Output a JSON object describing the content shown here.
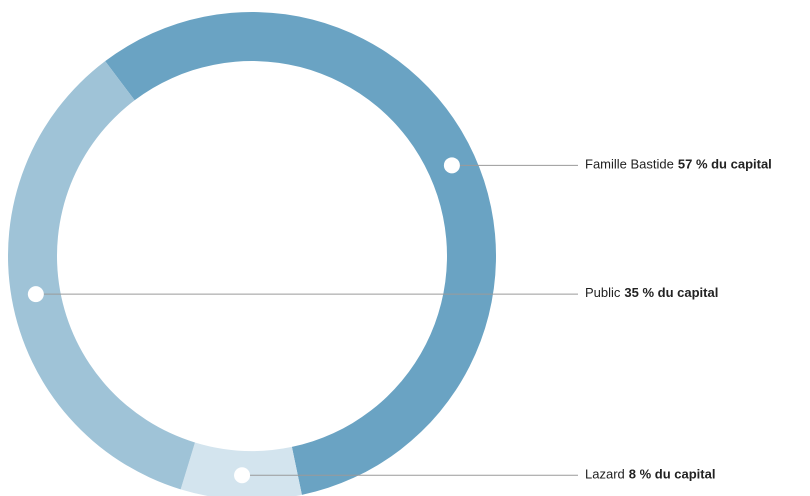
{
  "chart_data": {
    "type": "donut",
    "categories": [
      "Famille Bastide",
      "Lazard",
      "Public"
    ],
    "values": [
      57,
      8,
      35
    ],
    "value_labels": [
      "57 % du capital",
      "8 % du capital",
      "35 % du capital"
    ],
    "colors": [
      "#6aa3c3",
      "#d3e4ee",
      "#9fc3d7"
    ]
  }
}
